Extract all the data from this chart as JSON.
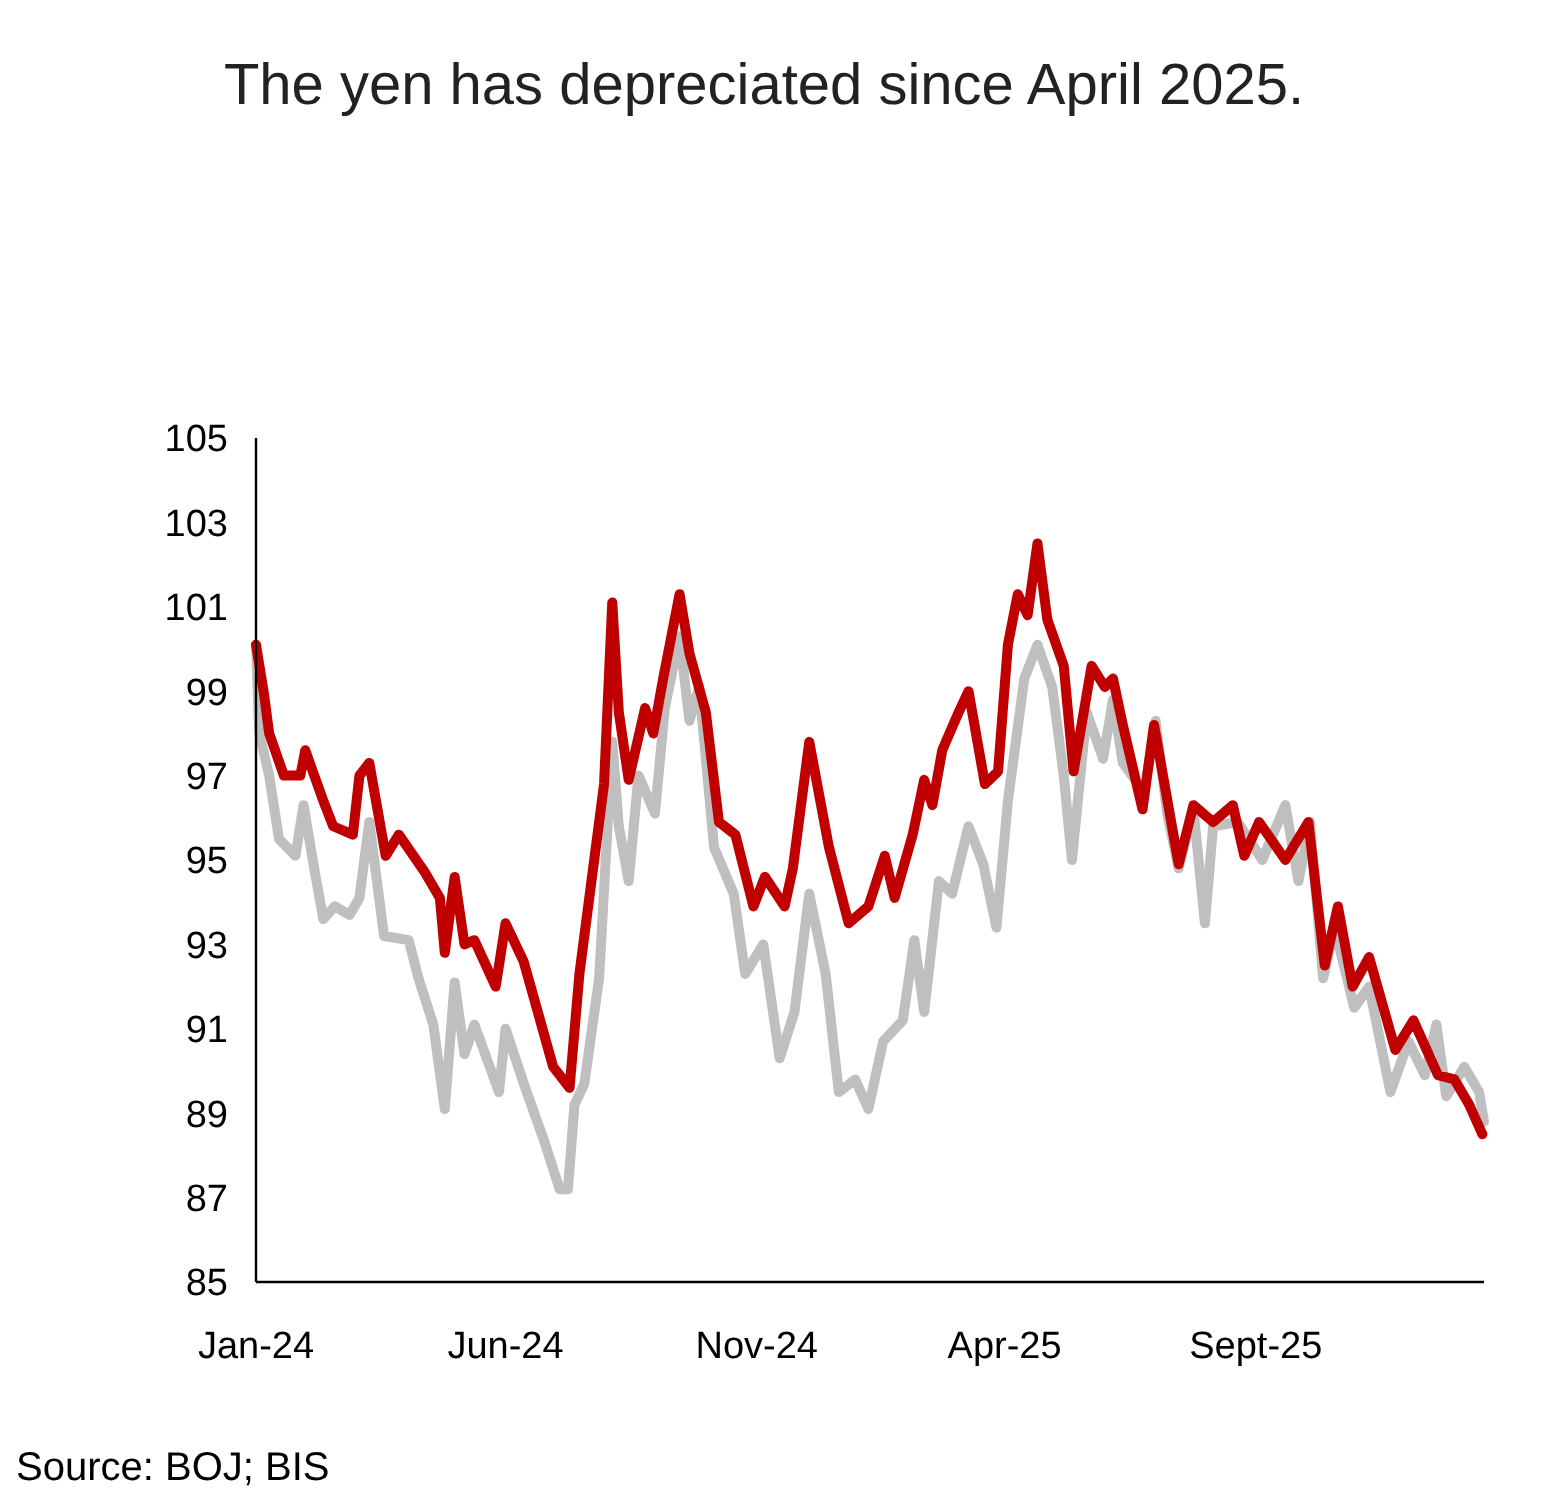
{
  "chart_data": {
    "type": "line",
    "title": "The yen has depreciated since April 2025.",
    "annotations": [
      "Source: BOJ; BIS"
    ],
    "xlim": [
      "2024-01-01",
      "2026-01-18"
    ],
    "xticks": [
      {
        "value": "2024-01-01",
        "label": "Jan-24"
      },
      {
        "value": "2024-06-01",
        "label": "Jun-24"
      },
      {
        "value": "2024-11-01",
        "label": "Nov-24"
      },
      {
        "value": "2025-04-01",
        "label": "Apr-25"
      },
      {
        "value": "2025-09-01",
        "label": "Sept-25"
      }
    ],
    "ylim": [
      85,
      105
    ],
    "yticks": [
      85,
      87,
      89,
      91,
      93,
      95,
      97,
      99,
      101,
      103,
      105
    ],
    "grid": false,
    "marker": "none",
    "line_style": "solid",
    "series": [
      {
        "color": "#bfbfbf",
        "x": [
          "2024-01-01",
          "2024-01-03",
          "2024-01-09",
          "2024-01-15",
          "2024-01-25",
          "2024-01-30",
          "2024-02-05",
          "2024-02-11",
          "2024-02-18",
          "2024-02-27",
          "2024-03-04",
          "2024-03-10",
          "2024-03-19",
          "2024-04-03",
          "2024-04-09",
          "2024-04-18",
          "2024-04-25",
          "2024-05-01",
          "2024-05-07",
          "2024-05-13",
          "2024-05-28",
          "2024-06-01",
          "2024-06-13",
          "2024-06-24",
          "2024-07-04",
          "2024-07-09",
          "2024-07-13",
          "2024-07-19",
          "2024-07-28",
          "2024-08-05",
          "2024-08-09",
          "2024-08-15",
          "2024-08-21",
          "2024-08-31",
          "2024-09-06",
          "2024-09-15",
          "2024-09-21",
          "2024-09-27",
          "2024-10-06",
          "2024-10-18",
          "2024-10-25",
          "2024-11-05",
          "2024-11-15",
          "2024-11-24",
          "2024-12-03",
          "2024-12-13",
          "2024-12-21",
          "2024-12-31",
          "2025-01-08",
          "2025-01-17",
          "2025-01-29",
          "2025-02-05",
          "2025-02-11",
          "2025-02-20",
          "2025-02-28",
          "2025-03-10",
          "2025-03-19",
          "2025-03-27",
          "2025-04-03",
          "2025-04-13",
          "2025-04-21",
          "2025-04-30",
          "2025-05-07",
          "2025-05-12",
          "2025-05-21",
          "2025-05-31",
          "2025-06-06",
          "2025-06-12",
          "2025-06-25",
          "2025-07-02",
          "2025-07-09",
          "2025-07-16",
          "2025-07-25",
          "2025-08-01",
          "2025-08-06",
          "2025-08-21",
          "2025-09-05",
          "2025-09-19",
          "2025-09-27",
          "2025-10-04",
          "2025-10-12",
          "2025-10-19",
          "2025-10-31",
          "2025-11-09",
          "2025-11-22",
          "2025-12-03",
          "2025-12-13",
          "2025-12-20",
          "2025-12-26",
          "2026-01-06",
          "2026-01-15",
          "2026-01-18"
        ],
        "values": [
          100.1,
          98.0,
          97.0,
          95.5,
          95.1,
          96.3,
          94.9,
          93.6,
          93.9,
          93.7,
          94.1,
          95.9,
          93.2,
          93.1,
          92.2,
          91.1,
          89.1,
          92.1,
          90.4,
          91.1,
          89.5,
          91.0,
          89.6,
          88.4,
          87.2,
          87.2,
          89.2,
          89.7,
          92.2,
          97.8,
          95.8,
          94.5,
          97.0,
          96.1,
          98.6,
          100.3,
          98.3,
          99.1,
          95.3,
          94.2,
          92.3,
          93.0,
          90.3,
          91.4,
          94.2,
          92.3,
          89.5,
          89.8,
          89.1,
          90.7,
          91.2,
          93.1,
          91.4,
          94.5,
          94.2,
          95.8,
          94.9,
          93.4,
          96.4,
          99.3,
          100.1,
          99.1,
          97.0,
          95.0,
          98.5,
          97.4,
          98.8,
          97.3,
          96.6,
          98.3,
          96.1,
          94.8,
          96.2,
          93.5,
          95.8,
          95.9,
          95.0,
          96.3,
          94.5,
          95.9,
          92.2,
          93.4,
          91.5,
          92.0,
          89.5,
          90.7,
          89.9,
          91.1,
          89.4,
          90.1,
          89.5,
          88.8
        ]
      },
      {
        "color": "#c00000",
        "x": [
          "2024-01-01",
          "2024-01-06",
          "2024-01-09",
          "2024-01-18",
          "2024-01-28",
          "2024-01-31",
          "2024-02-11",
          "2024-02-17",
          "2024-02-29",
          "2024-03-04",
          "2024-03-10",
          "2024-03-20",
          "2024-03-28",
          "2024-04-13",
          "2024-04-22",
          "2024-04-25",
          "2024-05-01",
          "2024-05-07",
          "2024-05-13",
          "2024-05-26",
          "2024-06-01",
          "2024-06-12",
          "2024-06-30",
          "2024-07-10",
          "2024-07-16",
          "2024-07-25",
          "2024-07-31",
          "2024-08-05",
          "2024-08-09",
          "2024-08-15",
          "2024-08-25",
          "2024-08-30",
          "2024-09-05",
          "2024-09-15",
          "2024-09-21",
          "2024-10-01",
          "2024-10-09",
          "2024-10-19",
          "2024-10-30",
          "2024-11-06",
          "2024-11-18",
          "2024-11-23",
          "2024-12-03",
          "2024-12-15",
          "2024-12-27",
          "2025-01-08",
          "2025-01-18",
          "2025-01-24",
          "2025-02-04",
          "2025-02-11",
          "2025-02-16",
          "2025-02-22",
          "2025-03-04",
          "2025-03-10",
          "2025-03-20",
          "2025-03-28",
          "2025-04-03",
          "2025-04-09",
          "2025-04-15",
          "2025-04-21",
          "2025-04-27",
          "2025-05-07",
          "2025-05-13",
          "2025-05-24",
          "2025-06-01",
          "2025-06-06",
          "2025-06-12",
          "2025-06-24",
          "2025-07-01",
          "2025-07-16",
          "2025-07-25",
          "2025-08-06",
          "2025-08-18",
          "2025-08-25",
          "2025-09-03",
          "2025-09-19",
          "2025-10-03",
          "2025-10-13",
          "2025-10-21",
          "2025-10-30",
          "2025-11-09",
          "2025-11-25",
          "2025-12-06",
          "2025-12-21",
          "2025-12-31",
          "2026-01-09",
          "2026-01-17"
        ],
        "values": [
          100.1,
          98.9,
          98.0,
          97.0,
          97.0,
          97.6,
          96.4,
          95.8,
          95.6,
          97.0,
          97.3,
          95.1,
          95.6,
          94.7,
          94.1,
          92.8,
          94.6,
          93.0,
          93.1,
          92.0,
          93.5,
          92.6,
          90.1,
          89.6,
          92.3,
          95.0,
          96.8,
          101.1,
          98.5,
          96.9,
          98.6,
          98.0,
          99.3,
          101.3,
          99.9,
          98.5,
          95.9,
          95.6,
          93.9,
          94.6,
          93.9,
          94.8,
          97.8,
          95.3,
          93.5,
          93.9,
          95.1,
          94.1,
          95.6,
          96.9,
          96.3,
          97.6,
          98.5,
          99.0,
          96.8,
          97.1,
          100.1,
          101.3,
          100.8,
          102.5,
          100.7,
          99.6,
          97.1,
          99.6,
          99.1,
          99.3,
          98.2,
          96.2,
          98.2,
          94.9,
          96.3,
          95.9,
          96.3,
          95.1,
          95.9,
          95.0,
          95.9,
          92.5,
          93.9,
          92.0,
          92.7,
          90.5,
          91.2,
          89.9,
          89.8,
          89.2,
          88.5
        ]
      }
    ]
  }
}
